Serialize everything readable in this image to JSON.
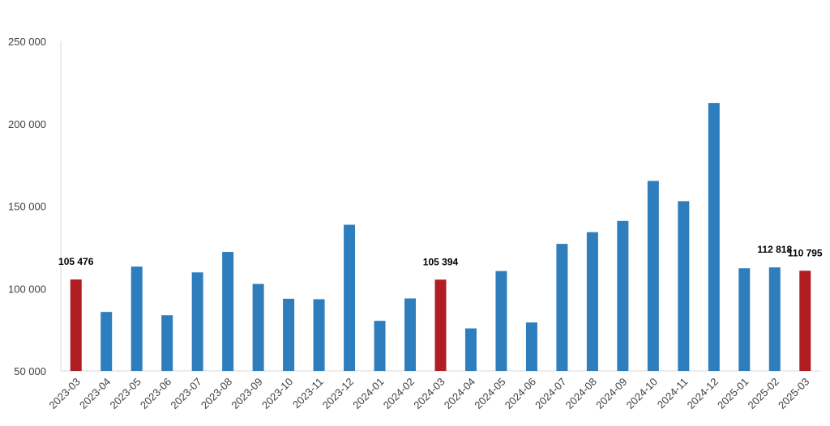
{
  "chart_data": {
    "type": "bar",
    "categories": [
      "2023-03",
      "2023-04",
      "2023-05",
      "2023-06",
      "2023-07",
      "2023-08",
      "2023-09",
      "2023-10",
      "2023-11",
      "2023-12",
      "2024-01",
      "2024-02",
      "2024-03",
      "2024-04",
      "2024-05",
      "2024-06",
      "2024-07",
      "2024-08",
      "2024-09",
      "2024-10",
      "2024-11",
      "2024-12",
      "2025-01",
      "2025-02",
      "2025-03"
    ],
    "values": [
      105476,
      85800,
      113300,
      83800,
      109800,
      122200,
      102800,
      93800,
      93500,
      138700,
      80400,
      94000,
      105394,
      75800,
      110600,
      79400,
      127100,
      134200,
      141000,
      165300,
      153000,
      212600,
      112300,
      112818,
      110795
    ],
    "highlight_indices": [
      0,
      12,
      24
    ],
    "data_labels": [
      {
        "index": 0,
        "text": "105 476"
      },
      {
        "index": 12,
        "text": "105 394"
      },
      {
        "index": 23,
        "text": "112 818"
      },
      {
        "index": 24,
        "text": "110 795"
      }
    ],
    "yticks": [
      {
        "value": 50000,
        "label": "50 000"
      },
      {
        "value": 100000,
        "label": "100 000"
      },
      {
        "value": 150000,
        "label": "150 000"
      },
      {
        "value": 200000,
        "label": "200 000"
      },
      {
        "value": 250000,
        "label": "250 000"
      }
    ],
    "ylim": [
      50000,
      250000
    ],
    "grid": false,
    "legend": "none",
    "colors": {
      "bar": "#2E7EBE",
      "highlight": "#B01E24",
      "axis": "#D9D9D9"
    },
    "title": "",
    "xlabel": "",
    "ylabel": ""
  }
}
